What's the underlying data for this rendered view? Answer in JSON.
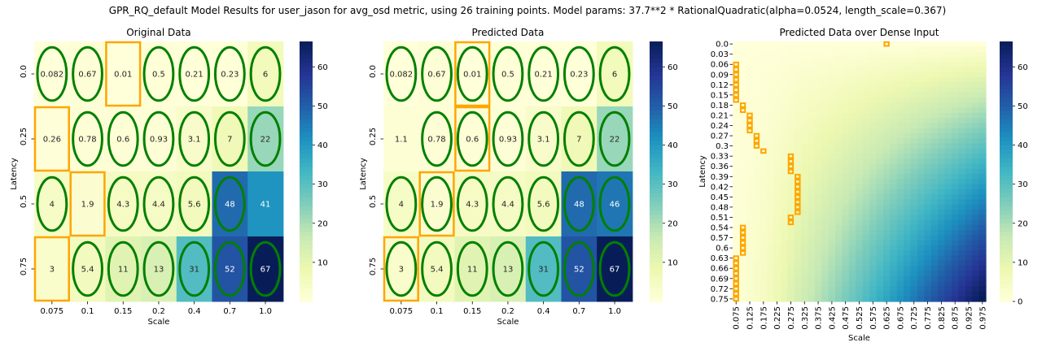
{
  "figure": {
    "suptitle": "GPR_RQ_default Model Results for user_jason for avg_osd metric, using 26 training points. Model params: 37.7**2 * RationalQuadratic(alpha=0.0524, length_scale=0.367)"
  },
  "chart_data": [
    {
      "type": "heatmap",
      "title": "Original Data",
      "xlabel": "Scale",
      "ylabel": "Latency",
      "x_categories": [
        "0.075",
        "0.1",
        "0.15",
        "0.2",
        "0.4",
        "0.7",
        "1.0"
      ],
      "y_categories": [
        "0.0",
        "0.25",
        "0.5",
        "0.75"
      ],
      "values": [
        [
          0.082,
          0.67,
          0.01,
          0.5,
          0.21,
          0.23,
          6
        ],
        [
          0.26,
          0.78,
          0.6,
          0.93,
          3.1,
          7,
          22
        ],
        [
          4,
          1.9,
          4.3,
          4.4,
          5.6,
          48,
          41
        ],
        [
          3,
          5.4,
          11,
          13,
          31,
          52,
          67
        ]
      ],
      "cell_labels": [
        [
          "0.082",
          "0.67",
          "0.01",
          "0.5",
          "0.21",
          "0.23",
          "6"
        ],
        [
          "0.26",
          "0.78",
          "0.6",
          "0.93",
          "3.1",
          "7",
          "22"
        ],
        [
          "4",
          "1.9",
          "4.3",
          "4.4",
          "5.6",
          "48",
          "41"
        ],
        [
          "3",
          "5.4",
          "11",
          "13",
          "31",
          "52",
          "67"
        ]
      ],
      "colorbar": {
        "min": 0,
        "max": 66.5,
        "ticks": [
          10,
          20,
          30,
          40,
          50,
          60
        ],
        "colormap": "YlGnBu"
      },
      "green_ellipse_cells": [
        [
          0,
          0
        ],
        [
          0,
          1
        ],
        [
          0,
          3
        ],
        [
          0,
          4
        ],
        [
          0,
          5
        ],
        [
          0,
          6
        ],
        [
          1,
          1
        ],
        [
          1,
          2
        ],
        [
          1,
          3
        ],
        [
          1,
          4
        ],
        [
          1,
          5
        ],
        [
          1,
          6
        ],
        [
          2,
          0
        ],
        [
          2,
          2
        ],
        [
          2,
          3
        ],
        [
          2,
          4
        ],
        [
          2,
          5
        ],
        [
          3,
          1
        ],
        [
          3,
          2
        ],
        [
          3,
          3
        ],
        [
          3,
          4
        ],
        [
          3,
          5
        ],
        [
          3,
          6
        ]
      ],
      "orange_box_cells": [
        [
          0,
          2
        ],
        [
          1,
          0
        ],
        [
          2,
          1
        ],
        [
          3,
          0
        ]
      ],
      "ellipse_color": "#008000",
      "box_color": "#ffa500"
    },
    {
      "type": "heatmap",
      "title": "Predicted Data",
      "xlabel": "Scale",
      "ylabel": "Latency",
      "x_categories": [
        "0.075",
        "0.1",
        "0.15",
        "0.2",
        "0.4",
        "0.7",
        "1.0"
      ],
      "y_categories": [
        "0.0",
        "0.25",
        "0.5",
        "0.75"
      ],
      "values": [
        [
          0.082,
          0.67,
          0.01,
          0.5,
          0.21,
          0.23,
          6
        ],
        [
          1.1,
          0.78,
          0.6,
          0.93,
          3.1,
          7,
          22
        ],
        [
          4,
          1.9,
          4.3,
          4.4,
          5.6,
          48,
          46
        ],
        [
          3,
          5.4,
          11,
          13,
          31,
          52,
          67
        ]
      ],
      "cell_labels": [
        [
          "0.082",
          "0.67",
          "0.01",
          "0.5",
          "0.21",
          "0.23",
          "6"
        ],
        [
          "1.1",
          "0.78",
          "0.6",
          "0.93",
          "3.1",
          "7",
          "22"
        ],
        [
          "4",
          "1.9",
          "4.3",
          "4.4",
          "5.6",
          "48",
          "46"
        ],
        [
          "3",
          "5.4",
          "11",
          "13",
          "31",
          "52",
          "67"
        ]
      ],
      "colorbar": {
        "min": 0,
        "max": 66.5,
        "ticks": [
          10,
          20,
          30,
          40,
          50,
          60
        ],
        "colormap": "YlGnBu"
      },
      "green_ellipse_cells": [
        [
          0,
          0
        ],
        [
          0,
          1
        ],
        [
          0,
          2
        ],
        [
          0,
          3
        ],
        [
          0,
          4
        ],
        [
          0,
          5
        ],
        [
          0,
          6
        ],
        [
          1,
          1
        ],
        [
          1,
          2
        ],
        [
          1,
          3
        ],
        [
          1,
          4
        ],
        [
          1,
          5
        ],
        [
          1,
          6
        ],
        [
          2,
          0
        ],
        [
          2,
          1
        ],
        [
          2,
          2
        ],
        [
          2,
          3
        ],
        [
          2,
          4
        ],
        [
          2,
          5
        ],
        [
          2,
          6
        ],
        [
          3,
          0
        ],
        [
          3,
          1
        ],
        [
          3,
          2
        ],
        [
          3,
          3
        ],
        [
          3,
          4
        ],
        [
          3,
          5
        ],
        [
          3,
          6
        ]
      ],
      "orange_box_cells": [
        [
          0,
          2
        ],
        [
          1,
          2
        ],
        [
          2,
          1
        ],
        [
          3,
          0
        ]
      ],
      "ellipse_color": "#008000",
      "box_color": "#ffa500"
    },
    {
      "type": "heatmap",
      "title": "Predicted Data over Dense Input",
      "xlabel": "Scale",
      "ylabel": "Latency",
      "x_categories": [
        "0.075",
        "0.1",
        "0.125",
        "0.15",
        "0.175",
        "0.2",
        "0.225",
        "0.25",
        "0.275",
        "0.3",
        "0.325",
        "0.35",
        "0.375",
        "0.4",
        "0.425",
        "0.45",
        "0.475",
        "0.5",
        "0.525",
        "0.55",
        "0.575",
        "0.6",
        "0.625",
        "0.65",
        "0.675",
        "0.7",
        "0.725",
        "0.75",
        "0.775",
        "0.8",
        "0.825",
        "0.85",
        "0.875",
        "0.9",
        "0.925",
        "0.95",
        "0.975"
      ],
      "x_tick_labels": [
        "0.075",
        "0.125",
        "0.175",
        "0.225",
        "0.275",
        "0.325",
        "0.375",
        "0.425",
        "0.475",
        "0.525",
        "0.575",
        "0.625",
        "0.675",
        "0.725",
        "0.775",
        "0.825",
        "0.875",
        "0.925",
        "0.975"
      ],
      "y_categories": [
        "0.0",
        "0.015",
        "0.03",
        "0.045",
        "0.06",
        "0.075",
        "0.09",
        "0.105",
        "0.12",
        "0.135",
        "0.15",
        "0.165",
        "0.18",
        "0.195",
        "0.21",
        "0.225",
        "0.24",
        "0.255",
        "0.27",
        "0.285",
        "0.3",
        "0.315",
        "0.33",
        "0.345",
        "0.36",
        "0.375",
        "0.39",
        "0.405",
        "0.42",
        "0.435",
        "0.45",
        "0.465",
        "0.48",
        "0.495",
        "0.51",
        "0.525",
        "0.54",
        "0.555",
        "0.57",
        "0.585",
        "0.6",
        "0.615",
        "0.63",
        "0.645",
        "0.66",
        "0.675",
        "0.69",
        "0.705",
        "0.72",
        "0.735",
        "0.75"
      ],
      "y_tick_labels": [
        "0.0",
        "0.03",
        "0.06",
        "0.09",
        "0.12",
        "0.15",
        "0.18",
        "0.21",
        "0.24",
        "0.27",
        "0.3",
        "0.33",
        "0.36",
        "0.39",
        "0.42",
        "0.45",
        "0.48",
        "0.51",
        "0.54",
        "0.57",
        "0.6",
        "0.63",
        "0.66",
        "0.69",
        "0.72",
        "0.75"
      ],
      "value_range": [
        0,
        66.5
      ],
      "surface_note": "near 0 at low scale / low latency, rising to ~67 at scale 1.0, latency 0.75",
      "orange_box_column_per_row": [
        22,
        null,
        null,
        null,
        0,
        0,
        0,
        0,
        0,
        0,
        0,
        0,
        1,
        1,
        2,
        2,
        2,
        2,
        3,
        3,
        3,
        4,
        8,
        8,
        8,
        8,
        9,
        9,
        9,
        9,
        9,
        9,
        9,
        9,
        8,
        8,
        1,
        1,
        1,
        1,
        1,
        1,
        0,
        0,
        0,
        0,
        0,
        0,
        0,
        0,
        0
      ],
      "colorbar": {
        "min": 0,
        "max": 66.5,
        "ticks": [
          0,
          10,
          20,
          30,
          40,
          50,
          60
        ],
        "colormap": "YlGnBu"
      },
      "box_color": "#ffa500"
    }
  ],
  "panels": [
    {
      "title": "Original Data",
      "xlabel": "Scale",
      "ylabel": "Latency"
    },
    {
      "title": "Predicted Data",
      "xlabel": "Scale",
      "ylabel": "Latency"
    },
    {
      "title": "Predicted Data over Dense Input",
      "xlabel": "Scale",
      "ylabel": "Latency"
    }
  ]
}
